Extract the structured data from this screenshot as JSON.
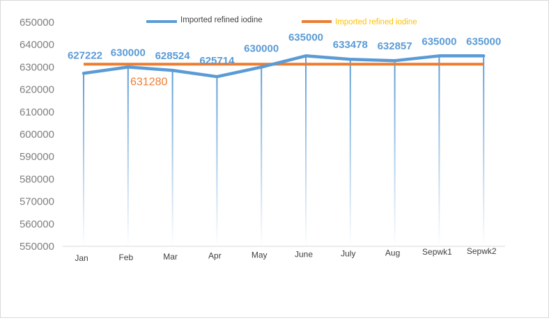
{
  "chart_data": {
    "type": "line",
    "categories": [
      "Jan",
      "Feb",
      "Mar",
      "Apr",
      "May",
      "June",
      "July",
      "Aug",
      "Sepwk1",
      "Sepwk2"
    ],
    "series": [
      {
        "name": "Imported refined iodine",
        "values": [
          627222,
          630000,
          628524,
          625714,
          630000,
          635000,
          633478,
          632857,
          635000,
          635000
        ],
        "color": "#5b9bd5",
        "data_labels": [
          "627222",
          "630000",
          "628524",
          "625714",
          "630000",
          "635000",
          "633478",
          "632857",
          "635000",
          "635000"
        ]
      },
      {
        "name": "Imported refined iodine",
        "values": [
          631280,
          631280,
          631280,
          631280,
          631280,
          631280,
          631280,
          631280,
          631280,
          631280
        ],
        "color": "#ed7d31",
        "data_labels": [
          "631280"
        ]
      }
    ],
    "legend_text_colors": [
      "#404040",
      "#ffc000"
    ],
    "ylim": [
      550000,
      650000
    ],
    "yticks": [
      "650000",
      "640000",
      "630000",
      "620000",
      "610000",
      "600000",
      "590000",
      "580000",
      "570000",
      "560000",
      "550000"
    ],
    "ytick_values": [
      650000,
      640000,
      630000,
      620000,
      610000,
      600000,
      590000,
      580000,
      570000,
      560000,
      550000
    ],
    "drop_lines": true,
    "grid": false,
    "legend_position": "top"
  }
}
